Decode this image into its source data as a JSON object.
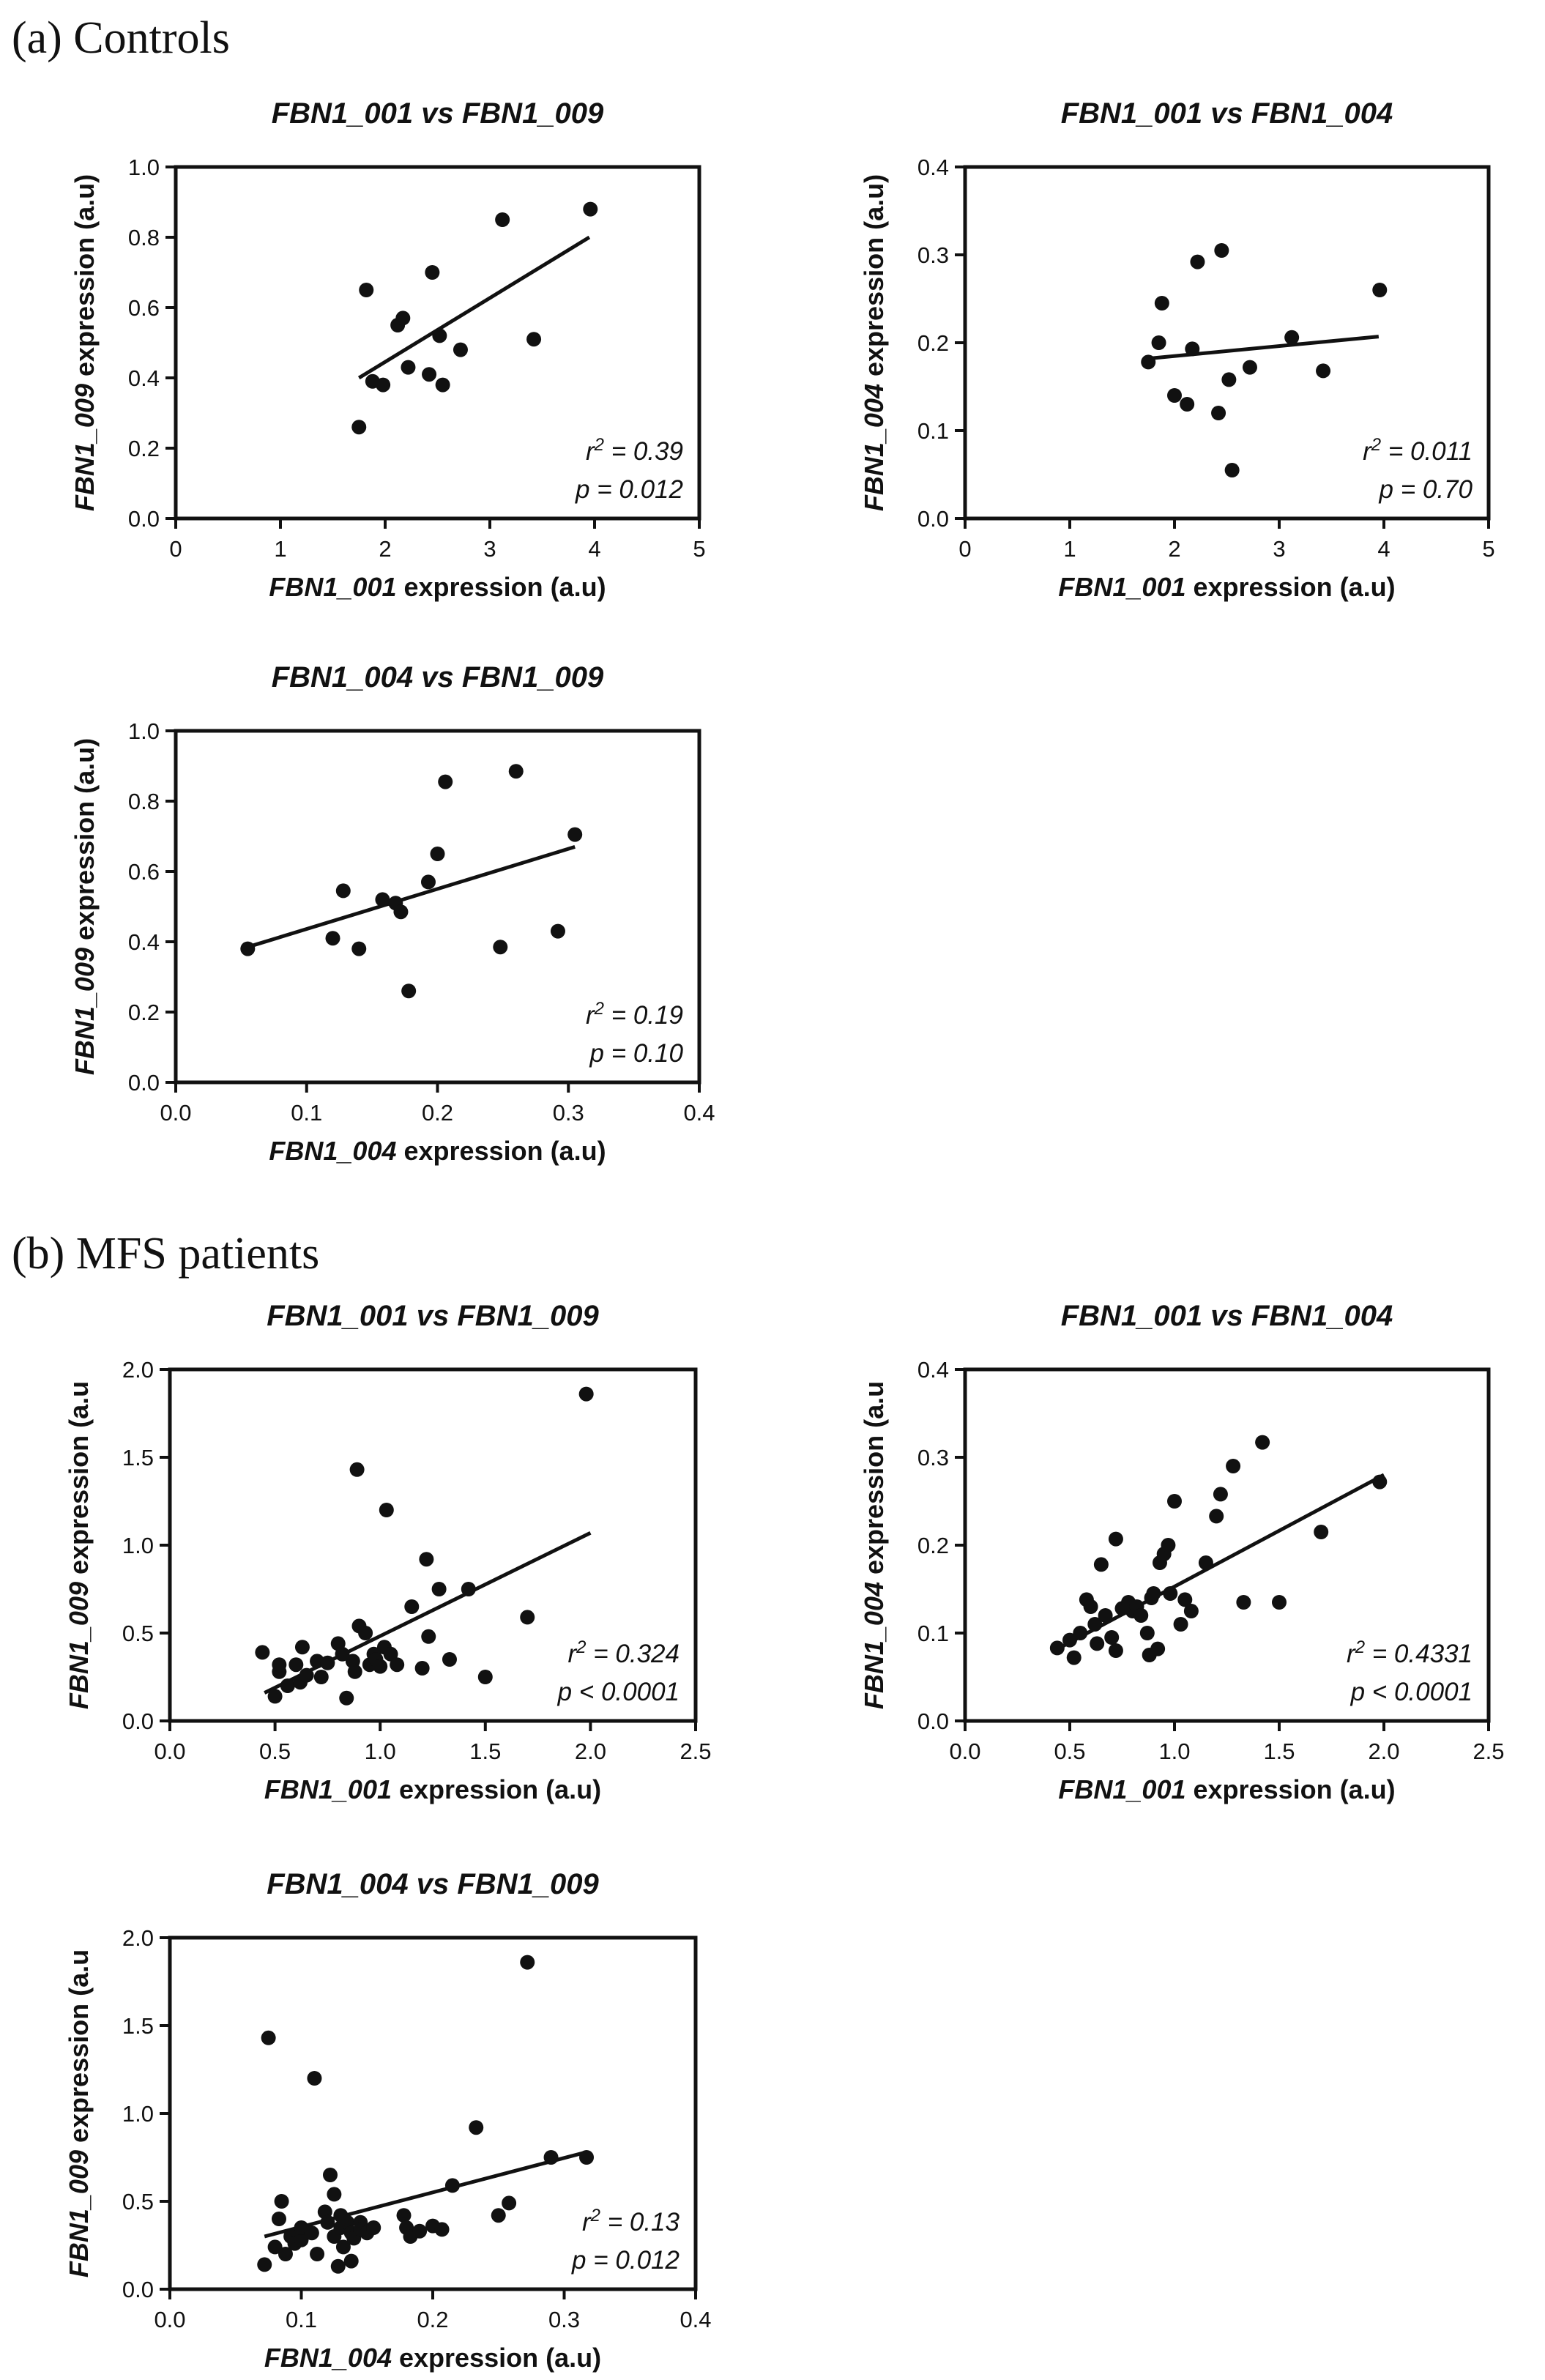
{
  "sections": [
    {
      "label": "(a) Controls"
    },
    {
      "label": "(b) MFS patients"
    }
  ],
  "chart_data": [
    {
      "type": "scatter",
      "section": "(a) Controls",
      "title_parts": [
        "FBN1_001",
        " vs ",
        "FBN1_009"
      ],
      "xlabel_gene": "FBN1_001",
      "xlabel_rest": " expression (a.u)",
      "ylabel_gene": "FBN1_009",
      "ylabel_rest": " expression (a.u)",
      "xlim": [
        0,
        5
      ],
      "ylim": [
        0,
        1.0
      ],
      "xticks": [
        0,
        1,
        2,
        3,
        4,
        5
      ],
      "xtick_labels": [
        "0",
        "1",
        "2",
        "3",
        "4",
        "5"
      ],
      "yticks": [
        0,
        0.2,
        0.4,
        0.6,
        0.8,
        1.0
      ],
      "ytick_labels": [
        "0.0",
        "0.2",
        "0.4",
        "0.6",
        "0.8",
        "1.0"
      ],
      "stat_var": "r",
      "stat_r2": " = 0.39",
      "stat_p": "p = 0.012",
      "fit_line": {
        "x": [
          1.75,
          3.95
        ],
        "y": [
          0.4,
          0.8
        ]
      },
      "points": [
        [
          1.75,
          0.26
        ],
        [
          1.82,
          0.65
        ],
        [
          1.88,
          0.39
        ],
        [
          1.98,
          0.38
        ],
        [
          2.12,
          0.55
        ],
        [
          2.17,
          0.57
        ],
        [
          2.22,
          0.43
        ],
        [
          2.42,
          0.41
        ],
        [
          2.45,
          0.7
        ],
        [
          2.52,
          0.52
        ],
        [
          2.55,
          0.38
        ],
        [
          2.72,
          0.48
        ],
        [
          3.12,
          0.85
        ],
        [
          3.42,
          0.51
        ],
        [
          3.96,
          0.88
        ]
      ]
    },
    {
      "type": "scatter",
      "section": "(a) Controls",
      "title_parts": [
        "FBN1_001",
        " vs ",
        "FBN1_004"
      ],
      "xlabel_gene": "FBN1_001",
      "xlabel_rest": " expression (a.u)",
      "ylabel_gene": "FBN1_004",
      "ylabel_rest": " expression (a.u)",
      "xlim": [
        0,
        5
      ],
      "ylim": [
        0,
        0.4
      ],
      "xticks": [
        0,
        1,
        2,
        3,
        4,
        5
      ],
      "xtick_labels": [
        "0",
        "1",
        "2",
        "3",
        "4",
        "5"
      ],
      "yticks": [
        0,
        0.1,
        0.2,
        0.3,
        0.4
      ],
      "ytick_labels": [
        "0.0",
        "0.1",
        "0.2",
        "0.3",
        "0.4"
      ],
      "stat_var": "r",
      "stat_r2": " = 0.011",
      "stat_p": "p = 0.70",
      "fit_line": {
        "x": [
          1.75,
          3.95
        ],
        "y": [
          0.182,
          0.207
        ]
      },
      "points": [
        [
          1.75,
          0.178
        ],
        [
          1.85,
          0.2
        ],
        [
          1.88,
          0.245
        ],
        [
          2.0,
          0.14
        ],
        [
          2.12,
          0.13
        ],
        [
          2.17,
          0.193
        ],
        [
          2.22,
          0.292
        ],
        [
          2.42,
          0.12
        ],
        [
          2.45,
          0.305
        ],
        [
          2.52,
          0.158
        ],
        [
          2.55,
          0.055
        ],
        [
          2.72,
          0.172
        ],
        [
          3.12,
          0.206
        ],
        [
          3.42,
          0.168
        ],
        [
          3.96,
          0.26
        ]
      ]
    },
    {
      "type": "scatter",
      "section": "(a) Controls",
      "title_parts": [
        "FBN1_004",
        " vs ",
        "FBN1_009"
      ],
      "xlabel_gene": "FBN1_004",
      "xlabel_rest": " expression (a.u)",
      "ylabel_gene": "FBN1_009",
      "ylabel_rest": " expression (a.u)",
      "xlim": [
        0,
        0.4
      ],
      "ylim": [
        0,
        1.0
      ],
      "xticks": [
        0,
        0.1,
        0.2,
        0.3,
        0.4
      ],
      "xtick_labels": [
        "0.0",
        "0.1",
        "0.2",
        "0.3",
        "0.4"
      ],
      "yticks": [
        0,
        0.2,
        0.4,
        0.6,
        0.8,
        1.0
      ],
      "ytick_labels": [
        "0.0",
        "0.2",
        "0.4",
        "0.6",
        "0.8",
        "1.0"
      ],
      "stat_var": "r",
      "stat_r2": " = 0.19",
      "stat_p": "p = 0.10",
      "fit_line": {
        "x": [
          0.055,
          0.305
        ],
        "y": [
          0.385,
          0.67
        ]
      },
      "points": [
        [
          0.055,
          0.38
        ],
        [
          0.12,
          0.41
        ],
        [
          0.128,
          0.545
        ],
        [
          0.14,
          0.38
        ],
        [
          0.158,
          0.52
        ],
        [
          0.168,
          0.51
        ],
        [
          0.172,
          0.485
        ],
        [
          0.178,
          0.26
        ],
        [
          0.193,
          0.57
        ],
        [
          0.2,
          0.65
        ],
        [
          0.206,
          0.855
        ],
        [
          0.248,
          0.385
        ],
        [
          0.26,
          0.885
        ],
        [
          0.292,
          0.43
        ],
        [
          0.305,
          0.705
        ]
      ]
    },
    {
      "type": "scatter",
      "section": "(b) MFS patients",
      "title_parts": [
        "FBN1_001",
        " vs ",
        "FBN1_009"
      ],
      "xlabel_gene": "FBN1_001",
      "xlabel_rest": " expression (a.u)",
      "ylabel_gene": "FBN1_009",
      "ylabel_rest": " expression (a.u",
      "xlim": [
        0,
        2.5
      ],
      "ylim": [
        0,
        2.0
      ],
      "xticks": [
        0,
        0.5,
        1.0,
        1.5,
        2.0,
        2.5
      ],
      "xtick_labels": [
        "0.0",
        "0.5",
        "1.0",
        "1.5",
        "2.0",
        "2.5"
      ],
      "yticks": [
        0,
        0.5,
        1.0,
        1.5,
        2.0
      ],
      "ytick_labels": [
        "0.0",
        "0.5",
        "1.0",
        "1.5",
        "2.0"
      ],
      "stat_var": "r",
      "stat_r2": " = 0.324",
      "stat_p": "p < 0.0001",
      "fit_line": {
        "x": [
          0.45,
          2.0
        ],
        "y": [
          0.16,
          1.07
        ]
      },
      "points": [
        [
          0.44,
          0.39
        ],
        [
          0.5,
          0.14
        ],
        [
          0.52,
          0.28
        ],
        [
          0.52,
          0.32
        ],
        [
          0.56,
          0.2
        ],
        [
          0.6,
          0.32
        ],
        [
          0.62,
          0.22
        ],
        [
          0.63,
          0.42
        ],
        [
          0.65,
          0.26
        ],
        [
          0.7,
          0.34
        ],
        [
          0.72,
          0.25
        ],
        [
          0.75,
          0.33
        ],
        [
          0.8,
          0.44
        ],
        [
          0.82,
          0.38
        ],
        [
          0.84,
          0.13
        ],
        [
          0.87,
          0.34
        ],
        [
          0.88,
          0.28
        ],
        [
          0.89,
          1.43
        ],
        [
          0.9,
          0.54
        ],
        [
          0.93,
          0.5
        ],
        [
          0.95,
          0.32
        ],
        [
          0.97,
          0.38
        ],
        [
          0.98,
          0.35
        ],
        [
          1.0,
          0.31
        ],
        [
          1.02,
          0.42
        ],
        [
          1.03,
          1.2
        ],
        [
          1.05,
          0.38
        ],
        [
          1.08,
          0.32
        ],
        [
          1.15,
          0.65
        ],
        [
          1.2,
          0.3
        ],
        [
          1.22,
          0.92
        ],
        [
          1.23,
          0.48
        ],
        [
          1.28,
          0.75
        ],
        [
          1.33,
          0.35
        ],
        [
          1.42,
          0.75
        ],
        [
          1.5,
          0.25
        ],
        [
          1.7,
          0.59
        ],
        [
          1.98,
          1.86
        ]
      ]
    },
    {
      "type": "scatter",
      "section": "(b) MFS patients",
      "title_parts": [
        "FBN1_001",
        " vs ",
        "FBN1_004"
      ],
      "xlabel_gene": "FBN1_001",
      "xlabel_rest": " expression (a.u)",
      "ylabel_gene": "FBN1_004",
      "ylabel_rest": "  expression (a.u",
      "xlim": [
        0,
        2.5
      ],
      "ylim": [
        0,
        0.4
      ],
      "xticks": [
        0,
        0.5,
        1.0,
        1.5,
        2.0,
        2.5
      ],
      "xtick_labels": [
        "0.0",
        "0.5",
        "1.0",
        "1.5",
        "2.0",
        "2.5"
      ],
      "yticks": [
        0,
        0.1,
        0.2,
        0.3,
        0.4
      ],
      "ytick_labels": [
        "0.0",
        "0.1",
        "0.2",
        "0.3",
        "0.4"
      ],
      "stat_var": "r",
      "stat_r2": " = 0.4331",
      "stat_p": "p < 0.0001",
      "fit_line": {
        "x": [
          0.45,
          2.0
        ],
        "y": [
          0.083,
          0.28
        ]
      },
      "points": [
        [
          0.44,
          0.083
        ],
        [
          0.5,
          0.092
        ],
        [
          0.52,
          0.072
        ],
        [
          0.55,
          0.1
        ],
        [
          0.58,
          0.138
        ],
        [
          0.6,
          0.13
        ],
        [
          0.62,
          0.11
        ],
        [
          0.63,
          0.088
        ],
        [
          0.65,
          0.178
        ],
        [
          0.67,
          0.12
        ],
        [
          0.7,
          0.095
        ],
        [
          0.72,
          0.207
        ],
        [
          0.72,
          0.08
        ],
        [
          0.75,
          0.128
        ],
        [
          0.78,
          0.135
        ],
        [
          0.8,
          0.125
        ],
        [
          0.82,
          0.13
        ],
        [
          0.84,
          0.12
        ],
        [
          0.87,
          0.1
        ],
        [
          0.88,
          0.075
        ],
        [
          0.89,
          0.14
        ],
        [
          0.9,
          0.145
        ],
        [
          0.92,
          0.082
        ],
        [
          0.93,
          0.18
        ],
        [
          0.95,
          0.19
        ],
        [
          0.97,
          0.2
        ],
        [
          0.98,
          0.145
        ],
        [
          1.0,
          0.25
        ],
        [
          1.03,
          0.11
        ],
        [
          1.05,
          0.138
        ],
        [
          1.08,
          0.125
        ],
        [
          1.15,
          0.18
        ],
        [
          1.2,
          0.233
        ],
        [
          1.22,
          0.258
        ],
        [
          1.28,
          0.29
        ],
        [
          1.33,
          0.135
        ],
        [
          1.42,
          0.317
        ],
        [
          1.5,
          0.135
        ],
        [
          1.7,
          0.215
        ],
        [
          1.98,
          0.272
        ]
      ]
    },
    {
      "type": "scatter",
      "section": "(b) MFS patients",
      "title_parts": [
        "FBN1_004",
        " vs ",
        "FBN1_009"
      ],
      "xlabel_gene": "FBN1_004",
      "xlabel_rest": " expression (a.u)",
      "ylabel_gene": "FBN1_009",
      "ylabel_rest": " expression (a.u",
      "xlim": [
        0,
        0.4
      ],
      "ylim": [
        0,
        2.0
      ],
      "xticks": [
        0,
        0.1,
        0.2,
        0.3,
        0.4
      ],
      "xtick_labels": [
        "0.0",
        "0.1",
        "0.2",
        "0.3",
        "0.4"
      ],
      "yticks": [
        0,
        0.5,
        1.0,
        1.5,
        2.0
      ],
      "ytick_labels": [
        "0.0",
        "0.5",
        "1.0",
        "1.5",
        "2.0"
      ],
      "stat_var": "r",
      "stat_r2": " = 0.13",
      "stat_p": "p = 0.012",
      "fit_line": {
        "x": [
          0.072,
          0.317
        ],
        "y": [
          0.3,
          0.78
        ]
      },
      "points": [
        [
          0.072,
          0.14
        ],
        [
          0.075,
          1.43
        ],
        [
          0.08,
          0.24
        ],
        [
          0.083,
          0.4
        ],
        [
          0.085,
          0.5
        ],
        [
          0.088,
          0.2
        ],
        [
          0.092,
          0.3
        ],
        [
          0.095,
          0.26
        ],
        [
          0.1,
          0.28
        ],
        [
          0.1,
          0.35
        ],
        [
          0.108,
          0.32
        ],
        [
          0.11,
          1.2
        ],
        [
          0.112,
          0.2
        ],
        [
          0.118,
          0.44
        ],
        [
          0.12,
          0.38
        ],
        [
          0.122,
          0.65
        ],
        [
          0.125,
          0.54
        ],
        [
          0.125,
          0.3
        ],
        [
          0.128,
          0.13
        ],
        [
          0.13,
          0.35
        ],
        [
          0.13,
          0.42
        ],
        [
          0.132,
          0.24
        ],
        [
          0.135,
          0.38
        ],
        [
          0.138,
          0.16
        ],
        [
          0.138,
          0.32
        ],
        [
          0.14,
          0.29
        ],
        [
          0.145,
          0.38
        ],
        [
          0.145,
          0.34
        ],
        [
          0.15,
          0.32
        ],
        [
          0.155,
          0.35
        ],
        [
          0.178,
          0.42
        ],
        [
          0.18,
          0.35
        ],
        [
          0.183,
          0.3
        ],
        [
          0.19,
          0.33
        ],
        [
          0.2,
          0.36
        ],
        [
          0.207,
          0.34
        ],
        [
          0.215,
          0.59
        ],
        [
          0.233,
          0.92
        ],
        [
          0.25,
          0.42
        ],
        [
          0.258,
          0.49
        ],
        [
          0.272,
          1.86
        ],
        [
          0.29,
          0.75
        ],
        [
          0.317,
          0.75
        ]
      ]
    }
  ]
}
